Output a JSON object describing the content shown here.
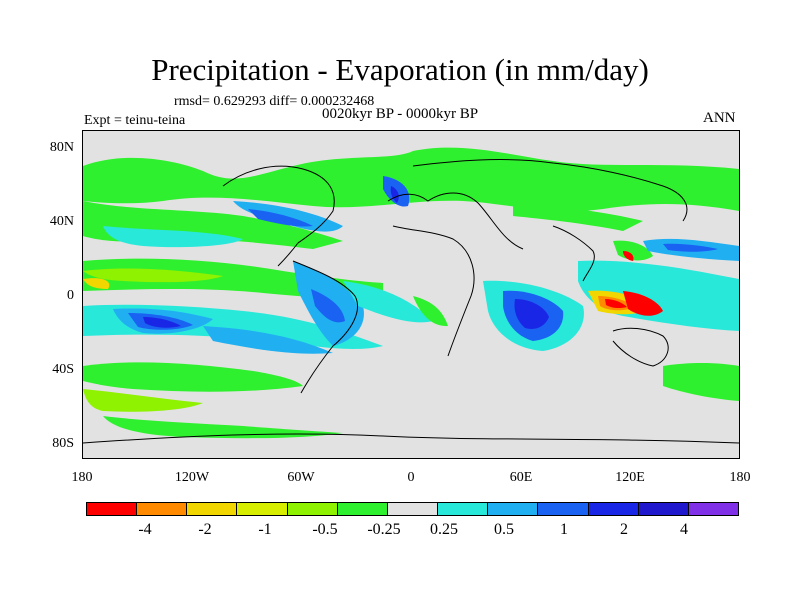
{
  "title": "Precipitation - Evaporation (in mm/day)",
  "stats": "rmsd= 0.629293 diff= 0.000232468",
  "period": "0020kyr BP - 0000kyr BP",
  "experiment": "Expt = teinu-teina",
  "season": "ANN",
  "lat_labels": [
    "80N",
    "40N",
    "0",
    "40S",
    "80S"
  ],
  "lon_labels": [
    "180",
    "120W",
    "60W",
    "0",
    "60E",
    "120E",
    "180"
  ],
  "colorbar": {
    "colors": [
      "#ff0000",
      "#ff8a00",
      "#f2d600",
      "#d8ee00",
      "#8ef200",
      "#2ff02e",
      "#e2e2e2",
      "#28e8da",
      "#20b0f2",
      "#1a62f2",
      "#1a26e6",
      "#2018cc",
      "#8030e6"
    ],
    "labels": [
      "-4",
      "-2",
      "-1",
      "-0.5",
      "-0.25",
      "0.25",
      "0.5",
      "1",
      "2",
      "4"
    ]
  }
}
